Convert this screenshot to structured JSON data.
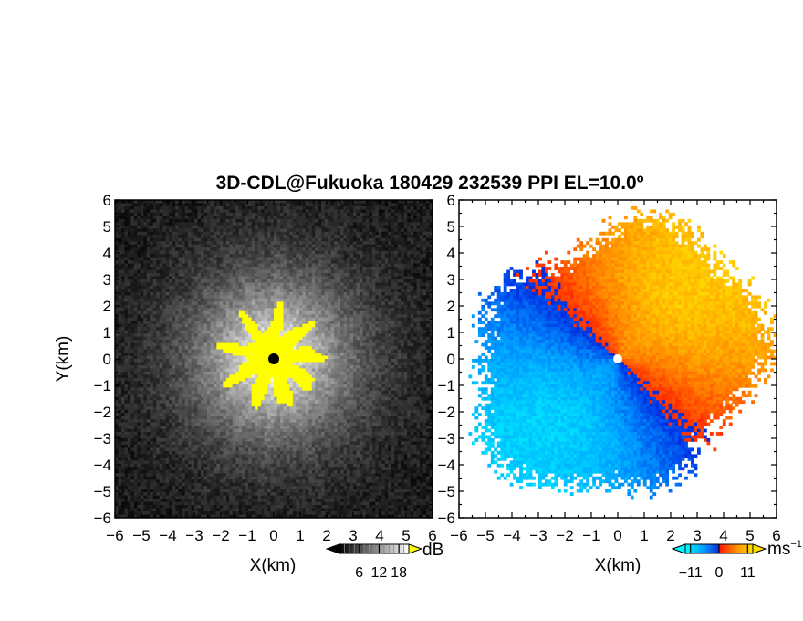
{
  "title": "3D-CDL@Fukuoka 180429 232539 PPI EL=10.0º",
  "chart_data": [
    {
      "type": "heatmap",
      "panel": "left",
      "field": "backscatter",
      "xlabel": "X(km)",
      "ylabel": "Y(km)",
      "xlim": [
        -6,
        6
      ],
      "ylim": [
        -6,
        6
      ],
      "xticks": [
        "−6",
        "−5",
        "−4",
        "−3",
        "−2",
        "−1",
        "0",
        "1",
        "2",
        "3",
        "4",
        "5",
        "6"
      ],
      "yticks": [
        "−6",
        "−5",
        "−4",
        "−3",
        "−2",
        "−1",
        "0",
        "1",
        "2",
        "3",
        "4",
        "5",
        "6"
      ],
      "colormap": "grayscale",
      "saturated_color": "#ffff00",
      "center_marker_color": "#000000",
      "colorbar": {
        "unit": "dB",
        "ticks": [
          6,
          12,
          18
        ],
        "tick_labels": [
          "6",
          "12",
          "18"
        ],
        "range": [
          0,
          21
        ]
      }
    },
    {
      "type": "heatmap",
      "panel": "right",
      "field": "doppler velocity",
      "xlabel": "X(km)",
      "xlim": [
        -6,
        6
      ],
      "ylim": [
        -6,
        6
      ],
      "xticks": [
        "−6",
        "−5",
        "−4",
        "−3",
        "−2",
        "−1",
        "0",
        "1",
        "2",
        "3",
        "4",
        "5",
        "6"
      ],
      "yticks": [
        "−6",
        "−5",
        "−4",
        "−3",
        "−2",
        "−1",
        "0",
        "1",
        "2",
        "3",
        "4",
        "5",
        "6"
      ],
      "colormap": "diverging cyan-blue / red-orange-yellow",
      "approach_colors": [
        "#00ffff",
        "#0090ff",
        "#0030e0"
      ],
      "recede_colors": [
        "#ff2000",
        "#ff8000",
        "#ffd000"
      ],
      "center_marker_color": "#ffffff",
      "colorbar": {
        "unit": "ms",
        "unit_exponent": "−1",
        "ticks": [
          -11,
          0,
          11
        ],
        "tick_labels": [
          "−11",
          "0",
          "11"
        ],
        "range": [
          -13,
          13
        ]
      }
    }
  ]
}
